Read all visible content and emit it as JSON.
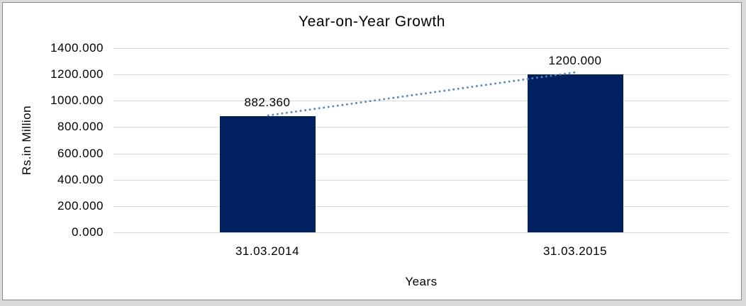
{
  "chart_data": {
    "type": "bar",
    "title": "Year-on-Year Growth",
    "categories": [
      "31.03.2014",
      "31.03.2015"
    ],
    "values": [
      882.36,
      1200.0
    ],
    "data_labels": [
      "882.360",
      "1200.000"
    ],
    "xlabel": "Years",
    "ylabel": "Rs.in Million",
    "ylim": [
      0,
      1400
    ],
    "ytick_interval": 200,
    "ytick_labels": [
      "0.000",
      "200.000",
      "400.000",
      "600.000",
      "800.000",
      "1000.000",
      "1200.000",
      "1400.000"
    ],
    "grid": true,
    "legend_position": "none",
    "trendline": {
      "style": "dotted",
      "connects": [
        882.36,
        1200.0
      ]
    },
    "colors": {
      "bar": "#002060",
      "trendline": "#4f86c6",
      "gridline": "#d9d9d9",
      "text": "#000000",
      "chart_background": "#ffffff",
      "frame_background": "#dbdbdb",
      "chart_border": "#8a8a8a"
    }
  }
}
